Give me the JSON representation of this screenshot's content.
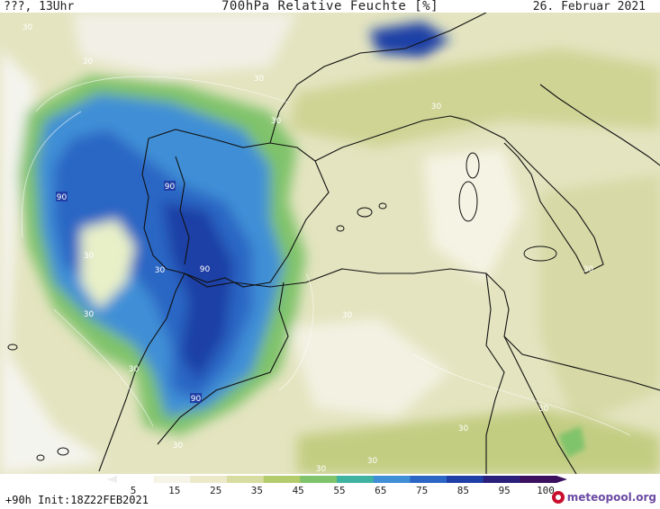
{
  "header": {
    "top_left": "???, 13Uhr",
    "title": "700hPa Relative Feuchte [%]",
    "date": "26. Februar 2021"
  },
  "footer": {
    "init": "+90h Init:18Z22FEB2021",
    "brand": "meteopool.org"
  },
  "legend": {
    "ticks": [
      "5",
      "15",
      "25",
      "35",
      "45",
      "55",
      "65",
      "75",
      "85",
      "95",
      "100"
    ],
    "colors": [
      "#ffffff",
      "#f6f4e6",
      "#ece9c8",
      "#d8dca0",
      "#b4cc6c",
      "#7fc36a",
      "#3fb2a2",
      "#3f8fd6",
      "#2c66c4",
      "#1f3fa6",
      "#2a1f7a",
      "#3c1060"
    ]
  },
  "map": {
    "contour_labels": [
      {
        "text": "30"
      },
      {
        "text": "30"
      },
      {
        "text": "30"
      },
      {
        "text": "30"
      },
      {
        "text": "90"
      },
      {
        "text": "90"
      },
      {
        "text": "90"
      },
      {
        "text": "30"
      },
      {
        "text": "30"
      },
      {
        "text": "30"
      },
      {
        "text": "30"
      },
      {
        "text": "30"
      },
      {
        "text": "30"
      },
      {
        "text": "30"
      },
      {
        "text": "30"
      },
      {
        "text": "30"
      },
      {
        "text": "30"
      },
      {
        "text": "30"
      },
      {
        "text": "90"
      },
      {
        "text": "30"
      }
    ]
  }
}
